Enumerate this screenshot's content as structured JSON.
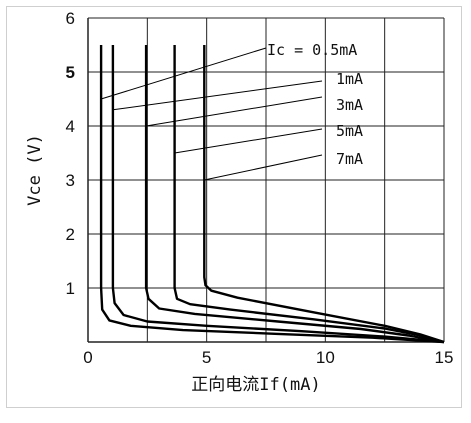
{
  "chart_data": {
    "type": "line",
    "xlabel": "正向电流If(mA)",
    "ylabel": "Vce (V)",
    "xlim": [
      0,
      15
    ],
    "ylim": [
      0,
      6
    ],
    "x_ticks": [
      "0",
      "5",
      "10",
      "15"
    ],
    "y_ticks": [
      "1",
      "2",
      "3",
      "4",
      "5",
      "6"
    ],
    "grid": true,
    "series": [
      {
        "name": "Ic = 0.5mA",
        "x": [
          0.55,
          0.55,
          0.6,
          0.9,
          1.8,
          4,
          8,
          12,
          15
        ],
        "y": [
          5.5,
          1.0,
          0.6,
          0.4,
          0.3,
          0.22,
          0.15,
          0.08,
          0.0
        ]
      },
      {
        "name": "1mA",
        "x": [
          1.05,
          1.05,
          1.12,
          1.5,
          2.5,
          5,
          9,
          12.5,
          15
        ],
        "y": [
          5.5,
          1.0,
          0.72,
          0.5,
          0.38,
          0.3,
          0.2,
          0.1,
          0.0
        ]
      },
      {
        "name": "3mA",
        "x": [
          2.45,
          2.45,
          2.55,
          3.0,
          4.5,
          8,
          11.5,
          13.5,
          15
        ],
        "y": [
          5.5,
          1.0,
          0.8,
          0.62,
          0.52,
          0.38,
          0.24,
          0.12,
          0.0
        ]
      },
      {
        "name": "5mA",
        "x": [
          3.65,
          3.65,
          3.75,
          4.3,
          6,
          9.5,
          12.5,
          14,
          15
        ],
        "y": [
          5.5,
          1.0,
          0.8,
          0.7,
          0.6,
          0.42,
          0.25,
          0.12,
          0.0
        ]
      },
      {
        "name": "7mA",
        "x": [
          4.9,
          4.9,
          4.95,
          5.2,
          6.3,
          9.5,
          12.5,
          14,
          15
        ],
        "y": [
          5.5,
          1.2,
          1.05,
          0.95,
          0.82,
          0.55,
          0.3,
          0.14,
          0.0
        ]
      }
    ],
    "annotations": [
      {
        "text": "Ic = 0.5mA",
        "series": 0
      },
      {
        "text": "1mA",
        "series": 1
      },
      {
        "text": "3mA",
        "series": 2
      },
      {
        "text": "5mA",
        "series": 3
      },
      {
        "text": "7mA",
        "series": 4
      }
    ]
  }
}
